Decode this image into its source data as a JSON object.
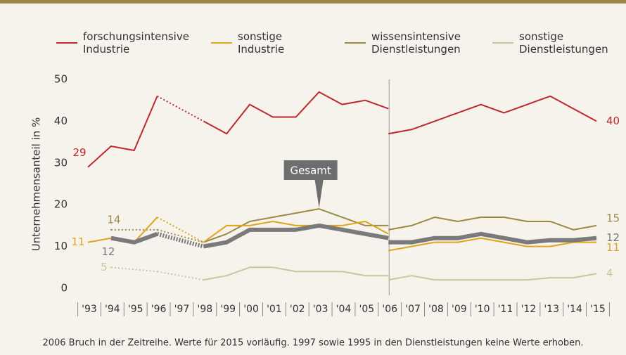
{
  "chart_data": {
    "type": "line",
    "ylabel": "Unternehmensanteil in %",
    "footnote": "2006 Bruch in der Zeitreihe. Werte für 2015 vorläufig. 1997 sowie 1995 in den Dienstleistungen keine Werte erhoben.",
    "annotation": "Gesamt",
    "categories": [
      "'93",
      "'94",
      "'95",
      "'96",
      "'97",
      "'98",
      "'99",
      "'00",
      "'01",
      "'02",
      "'03",
      "'04",
      "'05",
      "'06",
      "'07",
      "'08",
      "'09",
      "'10",
      "'11",
      "'12",
      "'13",
      "'14",
      "'15"
    ],
    "ylim": [
      0,
      50
    ],
    "yticks": [
      0,
      10,
      20,
      30,
      40,
      50
    ],
    "series": [
      {
        "name": "forschungsintensive Industrie",
        "color": "#c0262d",
        "width": 2,
        "legend": true,
        "first_label": "29",
        "last_label": "40",
        "before_break": [
          29,
          34,
          33,
          46,
          null,
          40,
          37,
          44,
          41,
          41,
          47,
          44,
          45,
          43
        ],
        "after_break": [
          37,
          38,
          40,
          42,
          44,
          42,
          44,
          46,
          43,
          40
        ]
      },
      {
        "name": "sonstige Industrie",
        "color": "#e0a41a",
        "width": 2,
        "legend": true,
        "first_label": "11",
        "last_label": "11",
        "before_break": [
          11,
          12,
          11,
          17,
          null,
          11,
          15,
          15,
          16,
          15,
          15,
          15,
          16,
          13
        ],
        "after_break": [
          9,
          10,
          11,
          11,
          12,
          11,
          10,
          10,
          11,
          11
        ]
      },
      {
        "name": "wissensintensive Dienstleistungen",
        "color": "#9b8a45",
        "width": 2,
        "legend": true,
        "first_label": "14",
        "last_label": "15",
        "before_break": [
          null,
          14,
          null,
          14,
          null,
          11,
          13,
          16,
          17,
          18,
          19,
          17,
          15,
          15
        ],
        "after_break": [
          14,
          15,
          17,
          16,
          17,
          17,
          16,
          16,
          14,
          15
        ]
      },
      {
        "name": "sonstige Dienstleistungen",
        "color": "#cfc3a0",
        "width": 2,
        "legend": true,
        "first_label": "5",
        "last_label": "4",
        "before_break": [
          null,
          5,
          null,
          4,
          null,
          2,
          3,
          5,
          5,
          4,
          4,
          4,
          3,
          3
        ],
        "after_break": [
          2,
          3,
          2,
          2,
          2,
          2,
          2,
          2.5,
          2.5,
          3.5
        ]
      },
      {
        "name": "Gesamt",
        "color": "#7a7a7a",
        "width": 6,
        "legend": false,
        "first_label": "12",
        "last_label": "12",
        "before_break": [
          null,
          12,
          11,
          13,
          null,
          10,
          11,
          14,
          14,
          14,
          15,
          14,
          13,
          12
        ],
        "after_break": [
          11,
          11,
          12,
          12,
          13,
          12,
          11,
          11.5,
          11.5,
          12
        ]
      }
    ]
  }
}
